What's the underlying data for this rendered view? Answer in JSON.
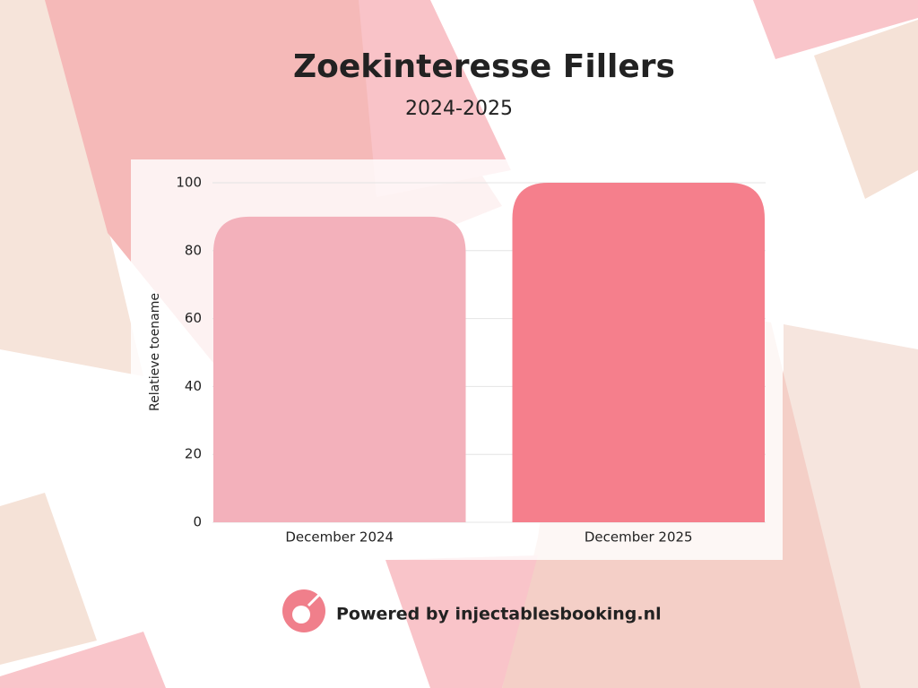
{
  "chart_data": {
    "type": "bar",
    "title": "Zoekinteresse Fillers",
    "subtitle": "2024-2025",
    "y_label": "Relatieve toename",
    "categories": [
      "December 2024",
      "December 2025"
    ],
    "values": [
      90,
      100
    ],
    "colors": [
      "#f3b1bb",
      "#f57f8c"
    ],
    "ylim": [
      0,
      100
    ],
    "yticks": [
      0,
      20,
      40,
      60,
      80,
      100
    ],
    "grid": true
  },
  "footer": "Powered by injectablesbooking.nl"
}
